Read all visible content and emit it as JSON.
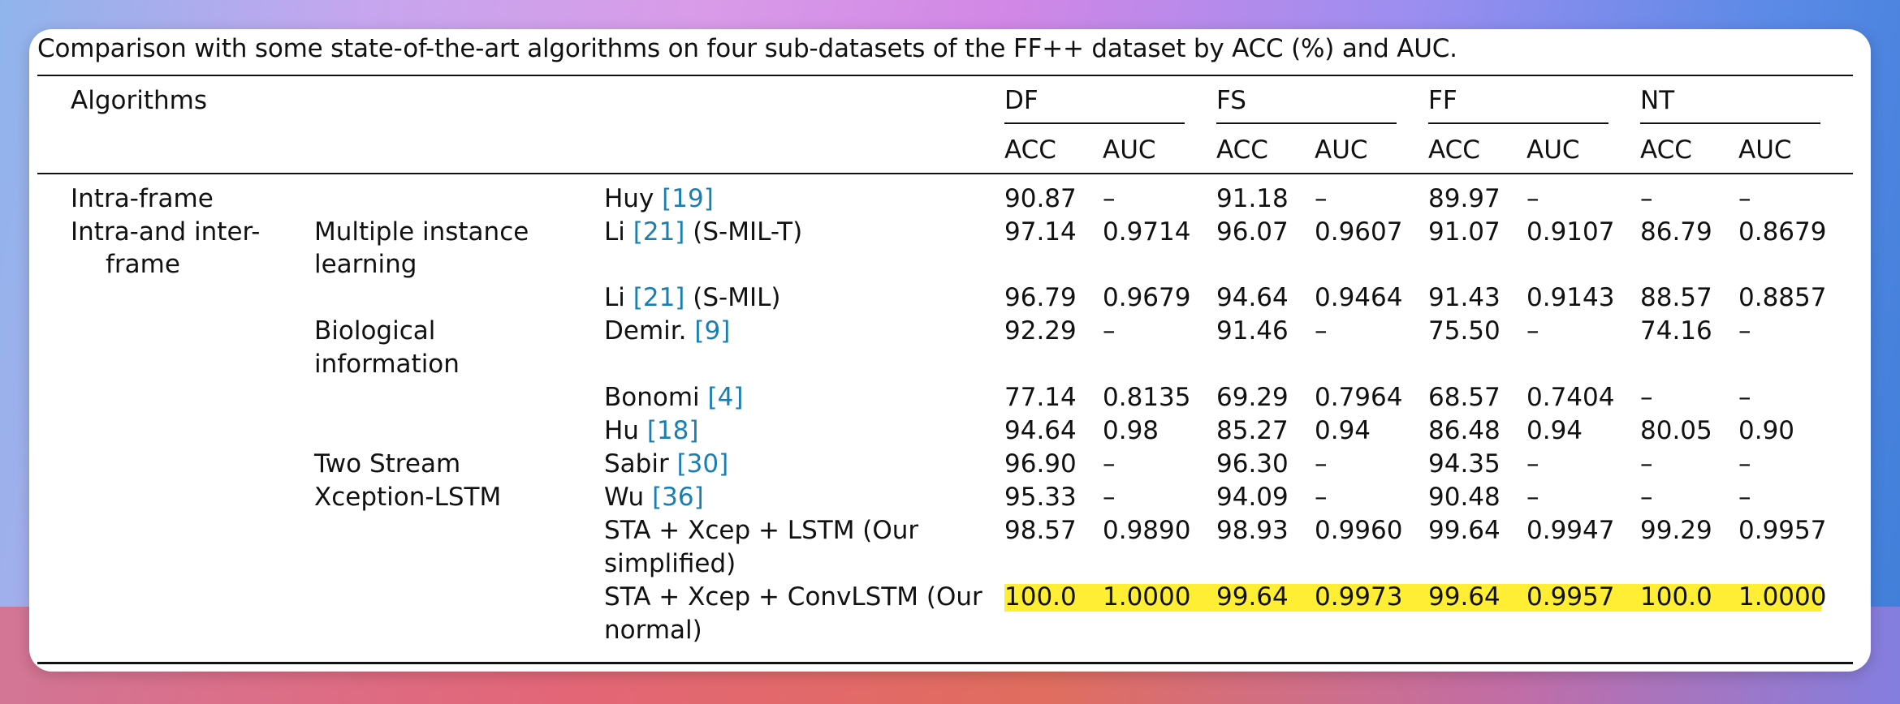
{
  "caption": "Comparison with some state-of-the-art algorithms on four sub-datasets of the FF++ dataset by ACC (%) and AUC.",
  "header": {
    "algorithms": "Algorithms",
    "groups": [
      "DF",
      "FS",
      "FF",
      "NT"
    ],
    "metrics": [
      "ACC",
      "AUC",
      "ACC",
      "AUC",
      "ACC",
      "AUC",
      "ACC",
      "AUC"
    ]
  },
  "categories": {
    "intra_frame": "Intra-frame",
    "intra_inter_line1": "Intra-and inter-",
    "intra_inter_line2": "frame"
  },
  "subcategories": {
    "mil_line1": "Multiple instance",
    "mil_line2": "learning",
    "bio_line1": "Biological",
    "bio_line2": "information",
    "two_stream_line1": "Two Stream",
    "two_stream_line2": "Xception-LSTM"
  },
  "rows": [
    {
      "m1": "Huy ",
      "ref": "[19]",
      "m2": "",
      "m3": "",
      "v": [
        "90.87",
        "–",
        "91.18",
        "–",
        "89.97",
        "–",
        "–",
        "–"
      ]
    },
    {
      "m1": "Li ",
      "ref": "[21]",
      "m2": " (S-MIL-T)",
      "m3": "",
      "v": [
        "97.14",
        "0.9714",
        "96.07",
        "0.9607",
        "91.07",
        "0.9107",
        "86.79",
        "0.8679"
      ]
    },
    {
      "m1": "Li ",
      "ref": "[21]",
      "m2": " (S-MIL)",
      "m3": "",
      "v": [
        "96.79",
        "0.9679",
        "94.64",
        "0.9464",
        "91.43",
        "0.9143",
        "88.57",
        "0.8857"
      ]
    },
    {
      "m1": "Demir. ",
      "ref": "[9]",
      "m2": "",
      "m3": "",
      "v": [
        "92.29",
        "–",
        "91.46",
        "–",
        "75.50",
        "–",
        "74.16",
        "–"
      ]
    },
    {
      "m1": "Bonomi ",
      "ref": "[4]",
      "m2": "",
      "m3": "",
      "v": [
        "77.14",
        "0.8135",
        "69.29",
        "0.7964",
        "68.57",
        "0.7404",
        "–",
        "–"
      ]
    },
    {
      "m1": "Hu ",
      "ref": "[18]",
      "m2": "",
      "m3": "",
      "v": [
        "94.64",
        "0.98",
        "85.27",
        "0.94",
        "86.48",
        "0.94",
        "80.05",
        "0.90"
      ]
    },
    {
      "m1": "Sabir ",
      "ref": "[30]",
      "m2": "",
      "m3": "",
      "v": [
        "96.90",
        "–",
        "96.30",
        "–",
        "94.35",
        "–",
        "–",
        "–"
      ]
    },
    {
      "m1": "Wu ",
      "ref": "[36]",
      "m2": "",
      "m3": "",
      "v": [
        "95.33",
        "–",
        "94.09",
        "–",
        "90.48",
        "–",
        "–",
        "–"
      ]
    },
    {
      "m1": "STA + Xcep + LSTM (Our",
      "ref": "",
      "m2": "",
      "m3": "simplified)",
      "v": [
        "98.57",
        "0.9890",
        "98.93",
        "0.9960",
        "99.64",
        "0.9947",
        "99.29",
        "0.9957"
      ]
    },
    {
      "m1": "STA + Xcep + ConvLSTM (Our",
      "ref": "",
      "m2": "",
      "m3": "normal)",
      "v": [
        "100.0",
        "1.0000",
        "99.64",
        "0.9973",
        "99.64",
        "0.9957",
        "100.0",
        "1.0000"
      ]
    }
  ],
  "highlight_color": "#ffee33",
  "ref_color": "#1a7fb0"
}
